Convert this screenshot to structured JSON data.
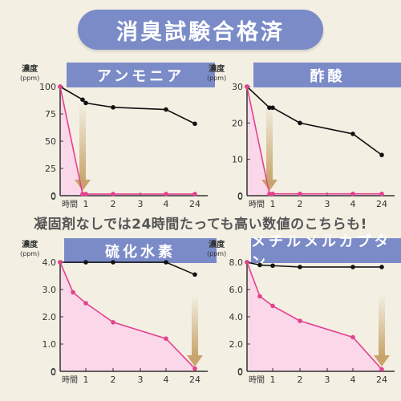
{
  "header": {
    "title": "消臭試験合格済"
  },
  "message": "凝固剤なしでは24時間たっても高い数値のこちらも!",
  "unit_label": "濃度",
  "unit_sub": "(ppm)",
  "colors": {
    "accent": "#7b8bc8",
    "reference": "#111111",
    "product": "#e4418f",
    "product_fill": "#fbd3ea",
    "arrow": "#c8a46c"
  },
  "chart_data": [
    {
      "type": "line",
      "title": "アンモニア",
      "xlabel": "時間",
      "x_ticks": [
        "0",
        "1",
        "2",
        "3",
        "4",
        "24"
      ],
      "y_ticks": [
        "0",
        "25",
        "50",
        "75",
        "100"
      ],
      "ylim": [
        0,
        100
      ],
      "series": [
        {
          "x": [
            0,
            0.75,
            1,
            2,
            4,
            24
          ],
          "values": [
            100,
            88,
            85,
            81,
            79,
            66
          ]
        },
        {
          "x": [
            0,
            0.75,
            1,
            2,
            4,
            24
          ],
          "values": [
            100,
            1.5,
            1.5,
            1.5,
            1.5,
            1.5
          ]
        }
      ]
    },
    {
      "type": "line",
      "title": "酢酸",
      "xlabel": "時間",
      "x_ticks": [
        "0",
        "1",
        "2",
        "3",
        "4",
        "24"
      ],
      "y_ticks": [
        "0",
        "10",
        "20",
        "30"
      ],
      "ylim": [
        0,
        30
      ],
      "series": [
        {
          "x": [
            0,
            0.75,
            1,
            2,
            4,
            24
          ],
          "values": [
            30,
            24.2,
            24.2,
            20,
            17,
            11.2
          ]
        },
        {
          "x": [
            0,
            0.75,
            1,
            2,
            4,
            24
          ],
          "values": [
            30,
            0.5,
            0.5,
            0.5,
            0.5,
            0.5
          ]
        }
      ]
    },
    {
      "type": "line",
      "title": "硫化水素",
      "xlabel": "時間",
      "x_ticks": [
        "0",
        "1",
        "2",
        "3",
        "4",
        "24"
      ],
      "y_ticks": [
        "0",
        "1.0",
        "2.0",
        "3.0",
        "4.0"
      ],
      "ylim": [
        0,
        4
      ],
      "series": [
        {
          "x": [
            0,
            1,
            2,
            4,
            24
          ],
          "values": [
            4.0,
            4.0,
            4.0,
            4.0,
            3.55
          ]
        },
        {
          "x": [
            0,
            0.5,
            1,
            2,
            4,
            24
          ],
          "values": [
            4.0,
            2.9,
            2.5,
            1.8,
            1.2,
            0.1
          ]
        }
      ]
    },
    {
      "type": "line",
      "title": "メチルメルカプタン",
      "xlabel": "時間",
      "x_ticks": [
        "0",
        "1",
        "2",
        "3",
        "4",
        "24"
      ],
      "y_ticks": [
        "0",
        "2.0",
        "4.0",
        "6.0",
        "8.0"
      ],
      "ylim": [
        0,
        8
      ],
      "series": [
        {
          "x": [
            0,
            0.5,
            1,
            2,
            4,
            24
          ],
          "values": [
            8.0,
            7.8,
            7.75,
            7.65,
            7.65,
            7.65
          ]
        },
        {
          "x": [
            0,
            0.5,
            1,
            2,
            4,
            24
          ],
          "values": [
            8.0,
            5.5,
            4.8,
            3.7,
            2.5,
            0.15
          ]
        }
      ]
    }
  ]
}
